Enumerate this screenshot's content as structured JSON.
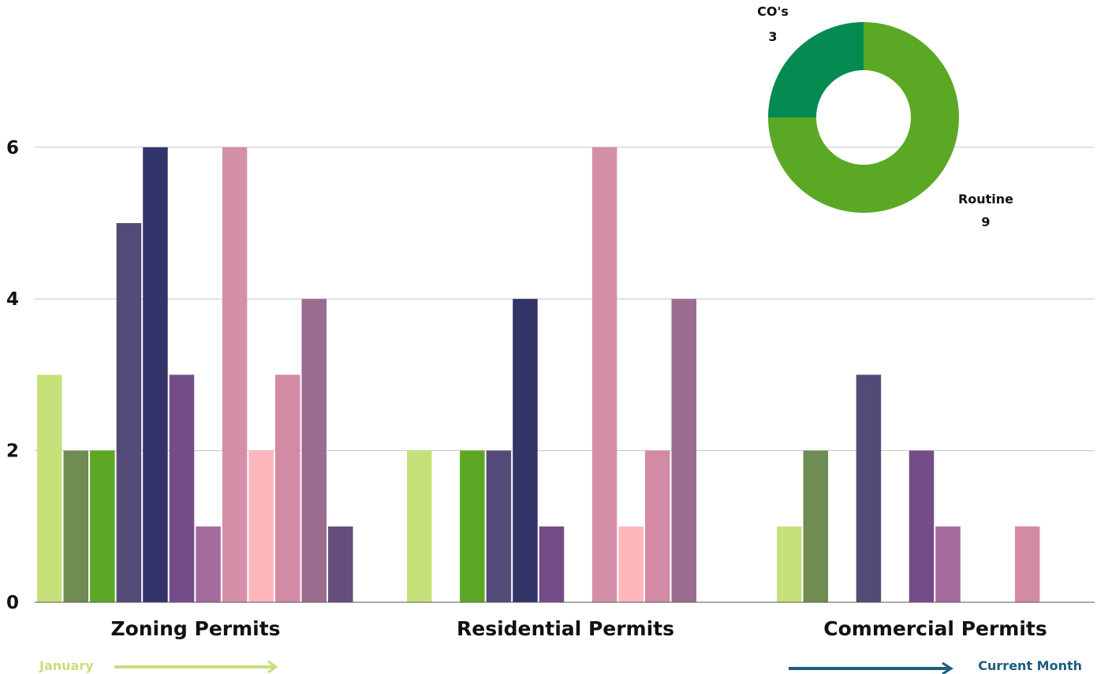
{
  "chart_data": [
    {
      "type": "bar",
      "categories": [
        "Zoning Permits",
        "Residential Permits",
        "Commercial Permits"
      ],
      "ylim": [
        0,
        8
      ],
      "yticks": [
        0,
        2,
        4,
        6
      ],
      "grid": true,
      "bar_colors": [
        "#c6e07a",
        "#6f8c52",
        "#5ba825",
        "#544a78",
        "#32346a",
        "#744d88",
        "#a56b9c",
        "#d68fa8",
        "#ffb6bb",
        "#d38aa4",
        "#9c6b90",
        "#634e7c"
      ],
      "series": [
        {
          "values": [
            3,
            2,
            1
          ]
        },
        {
          "values": [
            2,
            0,
            2
          ]
        },
        {
          "values": [
            2,
            2,
            0
          ]
        },
        {
          "values": [
            5,
            2,
            3
          ]
        },
        {
          "values": [
            6,
            4,
            0
          ]
        },
        {
          "values": [
            3,
            1,
            2
          ]
        },
        {
          "values": [
            1,
            0,
            1
          ]
        },
        {
          "values": [
            6,
            6,
            0
          ]
        },
        {
          "values": [
            2,
            1,
            0
          ]
        },
        {
          "values": [
            3,
            2,
            1
          ]
        },
        {
          "values": [
            4,
            4,
            0
          ]
        },
        {
          "values": [
            1,
            0,
            0
          ]
        }
      ],
      "legend": {
        "start_label": "January",
        "start_color": "#c6e07a",
        "end_label": "Current Month",
        "end_color": "#1b5e7e"
      }
    },
    {
      "type": "pie",
      "style": "donut",
      "slices": [
        {
          "label": "CO's",
          "value": 3,
          "color": "#058b52"
        },
        {
          "label": "Routine",
          "value": 9,
          "color": "#5ba825"
        }
      ]
    }
  ]
}
